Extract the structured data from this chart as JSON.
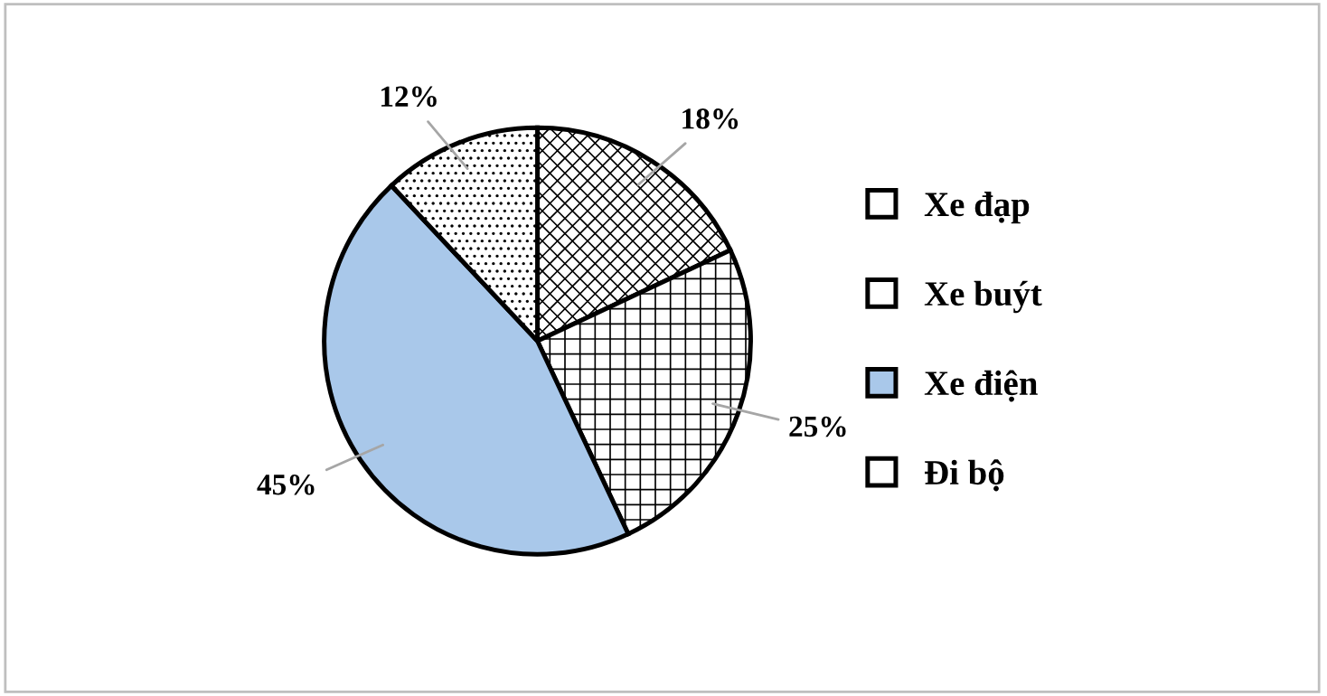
{
  "chart_data": {
    "type": "pie",
    "categories": [
      "Xe đạp",
      "Xe buýt",
      "Xe điện",
      "Đi bộ"
    ],
    "values": [
      18,
      25,
      45,
      12
    ],
    "colors": [
      "#ffffff",
      "#ffffff",
      "#a9c8ea",
      "#ffffff"
    ],
    "value_labels": [
      "18%",
      "25%",
      "45%",
      "12%"
    ],
    "legend": "right"
  }
}
